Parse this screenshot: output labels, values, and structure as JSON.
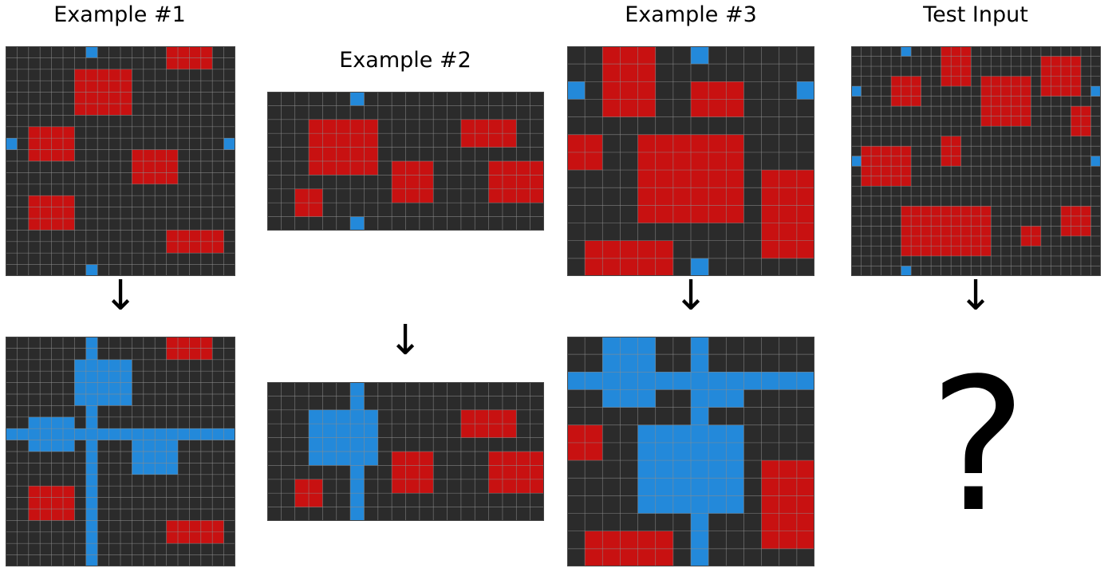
{
  "colors": {
    "background": "#2b2b2b",
    "red": "#c81111",
    "blue": "#2389da",
    "gridline": "#8c8c8c"
  },
  "examples": [
    {
      "title": "Example #1",
      "input": {
        "rows": 20,
        "cols": 20,
        "red": [
          [
            0,
            14,
            2,
            4
          ],
          [
            2,
            6,
            4,
            5
          ],
          [
            7,
            2,
            3,
            4
          ],
          [
            9,
            11,
            3,
            4
          ],
          [
            13,
            2,
            3,
            4
          ],
          [
            16,
            14,
            2,
            5
          ]
        ],
        "blue": [
          [
            0,
            7,
            1,
            1
          ],
          [
            8,
            0,
            1,
            1
          ],
          [
            8,
            19,
            1,
            1
          ],
          [
            19,
            7,
            1,
            1
          ]
        ]
      },
      "output": {
        "rows": 20,
        "cols": 20,
        "red": [
          [
            0,
            14,
            2,
            4
          ],
          [
            13,
            2,
            3,
            4
          ],
          [
            16,
            14,
            2,
            5
          ]
        ],
        "blue": [
          [
            0,
            7,
            20,
            1
          ],
          [
            8,
            0,
            1,
            20
          ],
          [
            2,
            6,
            4,
            5
          ],
          [
            7,
            2,
            3,
            4
          ],
          [
            9,
            11,
            3,
            4
          ]
        ]
      }
    },
    {
      "title": "Example #2",
      "input": {
        "rows": 10,
        "cols": 20,
        "red": [
          [
            2,
            3,
            4,
            5
          ],
          [
            2,
            14,
            2,
            4
          ],
          [
            5,
            9,
            3,
            3
          ],
          [
            5,
            16,
            3,
            4
          ],
          [
            7,
            2,
            2,
            2
          ]
        ],
        "blue": [
          [
            0,
            6,
            1,
            1
          ],
          [
            9,
            6,
            1,
            1
          ]
        ]
      },
      "output": {
        "rows": 10,
        "cols": 20,
        "red": [
          [
            2,
            14,
            2,
            4
          ],
          [
            5,
            9,
            3,
            3
          ],
          [
            5,
            16,
            3,
            4
          ],
          [
            7,
            2,
            2,
            2
          ]
        ],
        "blue": [
          [
            0,
            6,
            10,
            1
          ],
          [
            2,
            3,
            4,
            5
          ]
        ]
      }
    },
    {
      "title": "Example #3",
      "input": {
        "rows": 13,
        "cols": 14,
        "red": [
          [
            0,
            2,
            4,
            3
          ],
          [
            2,
            7,
            2,
            3
          ],
          [
            5,
            0,
            2,
            2
          ],
          [
            5,
            4,
            5,
            6
          ],
          [
            7,
            11,
            5,
            3
          ],
          [
            11,
            1,
            2,
            5
          ]
        ],
        "blue": [
          [
            0,
            7,
            1,
            1
          ],
          [
            2,
            0,
            1,
            1
          ],
          [
            2,
            13,
            1,
            1
          ],
          [
            12,
            7,
            1,
            1
          ]
        ]
      },
      "output": {
        "rows": 13,
        "cols": 14,
        "red": [
          [
            5,
            0,
            2,
            2
          ],
          [
            7,
            11,
            5,
            3
          ],
          [
            11,
            1,
            2,
            5
          ]
        ],
        "blue": [
          [
            0,
            7,
            13,
            1
          ],
          [
            2,
            0,
            1,
            14
          ],
          [
            0,
            2,
            4,
            3
          ],
          [
            2,
            7,
            2,
            3
          ],
          [
            5,
            4,
            5,
            6
          ]
        ]
      }
    },
    {
      "title": "Test Input",
      "input": {
        "rows": 23,
        "cols": 25,
        "red": [
          [
            0,
            9,
            4,
            3
          ],
          [
            1,
            19,
            4,
            4
          ],
          [
            3,
            4,
            3,
            3
          ],
          [
            3,
            13,
            5,
            5
          ],
          [
            6,
            22,
            3,
            2
          ],
          [
            9,
            9,
            3,
            2
          ],
          [
            10,
            1,
            4,
            5
          ],
          [
            16,
            5,
            5,
            9
          ],
          [
            16,
            21,
            3,
            3
          ],
          [
            18,
            17,
            2,
            2
          ]
        ],
        "blue": [
          [
            0,
            5,
            1,
            1
          ],
          [
            4,
            0,
            1,
            1
          ],
          [
            4,
            24,
            1,
            1
          ],
          [
            11,
            0,
            1,
            1
          ],
          [
            11,
            24,
            1,
            1
          ],
          [
            22,
            5,
            1,
            1
          ]
        ]
      },
      "output": null,
      "unknown_symbol": "?"
    }
  ],
  "arrow_symbol": "↓"
}
